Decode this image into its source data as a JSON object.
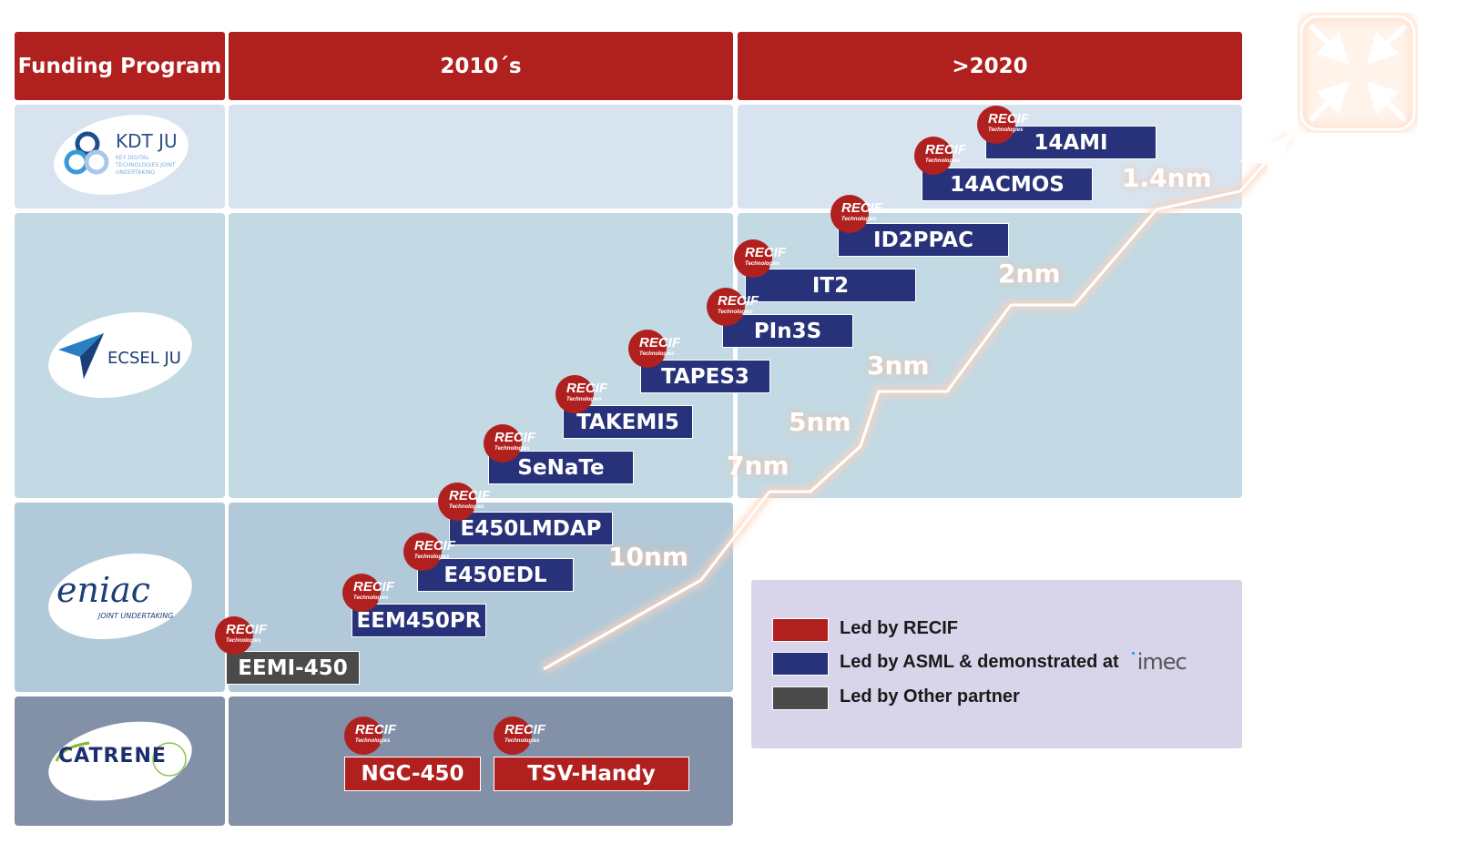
{
  "header": {
    "col1": "Funding Program",
    "col2": "2010´s",
    "col3": ">2020"
  },
  "programs": [
    {
      "name": "KDT JU",
      "sub": "KEY DIGITAL TECHNOLOGIES JOINT UNDERTAKING"
    },
    {
      "name": "ECSEL JU"
    },
    {
      "name": "eniac",
      "sub": "JOINT UNDERTAKING"
    },
    {
      "name": "CATRENE"
    }
  ],
  "badge": {
    "title": "RECIF",
    "sub": "Technologies"
  },
  "projects": [
    {
      "label": "14AMI",
      "lead": "ASML"
    },
    {
      "label": "14ACMOS",
      "lead": "ASML"
    },
    {
      "label": "ID2PPAC",
      "lead": "ASML"
    },
    {
      "label": "IT2",
      "lead": "ASML"
    },
    {
      "label": "PIn3S",
      "lead": "ASML"
    },
    {
      "label": "TAPES3",
      "lead": "ASML"
    },
    {
      "label": "TAKEMI5",
      "lead": "ASML"
    },
    {
      "label": "SeNaTe",
      "lead": "ASML"
    },
    {
      "label": "E450LMDAP",
      "lead": "ASML"
    },
    {
      "label": "E450EDL",
      "lead": "ASML"
    },
    {
      "label": "EEM450PR",
      "lead": "ASML"
    },
    {
      "label": "EEMI-450",
      "lead": "Other"
    },
    {
      "label": "NGC-450",
      "lead": "RECIF"
    },
    {
      "label": "TSV-Handy",
      "lead": "RECIF"
    }
  ],
  "nodes": [
    "10nm",
    "7nm",
    "5nm",
    "3nm",
    "2nm",
    "1.4nm"
  ],
  "legend": [
    {
      "label": "Led by RECIF",
      "color": "#B0201E"
    },
    {
      "label": "Led by ASML & demonstrated at",
      "color": "#27327A",
      "logo": "imec"
    },
    {
      "label": "Led by Other partner",
      "color": "#4A4A4A"
    }
  ],
  "colors": {
    "header": "#B0201E",
    "asml": "#27327A",
    "other": "#4A4A4A"
  },
  "icons": {
    "corner": "shrink-arrows-icon"
  }
}
